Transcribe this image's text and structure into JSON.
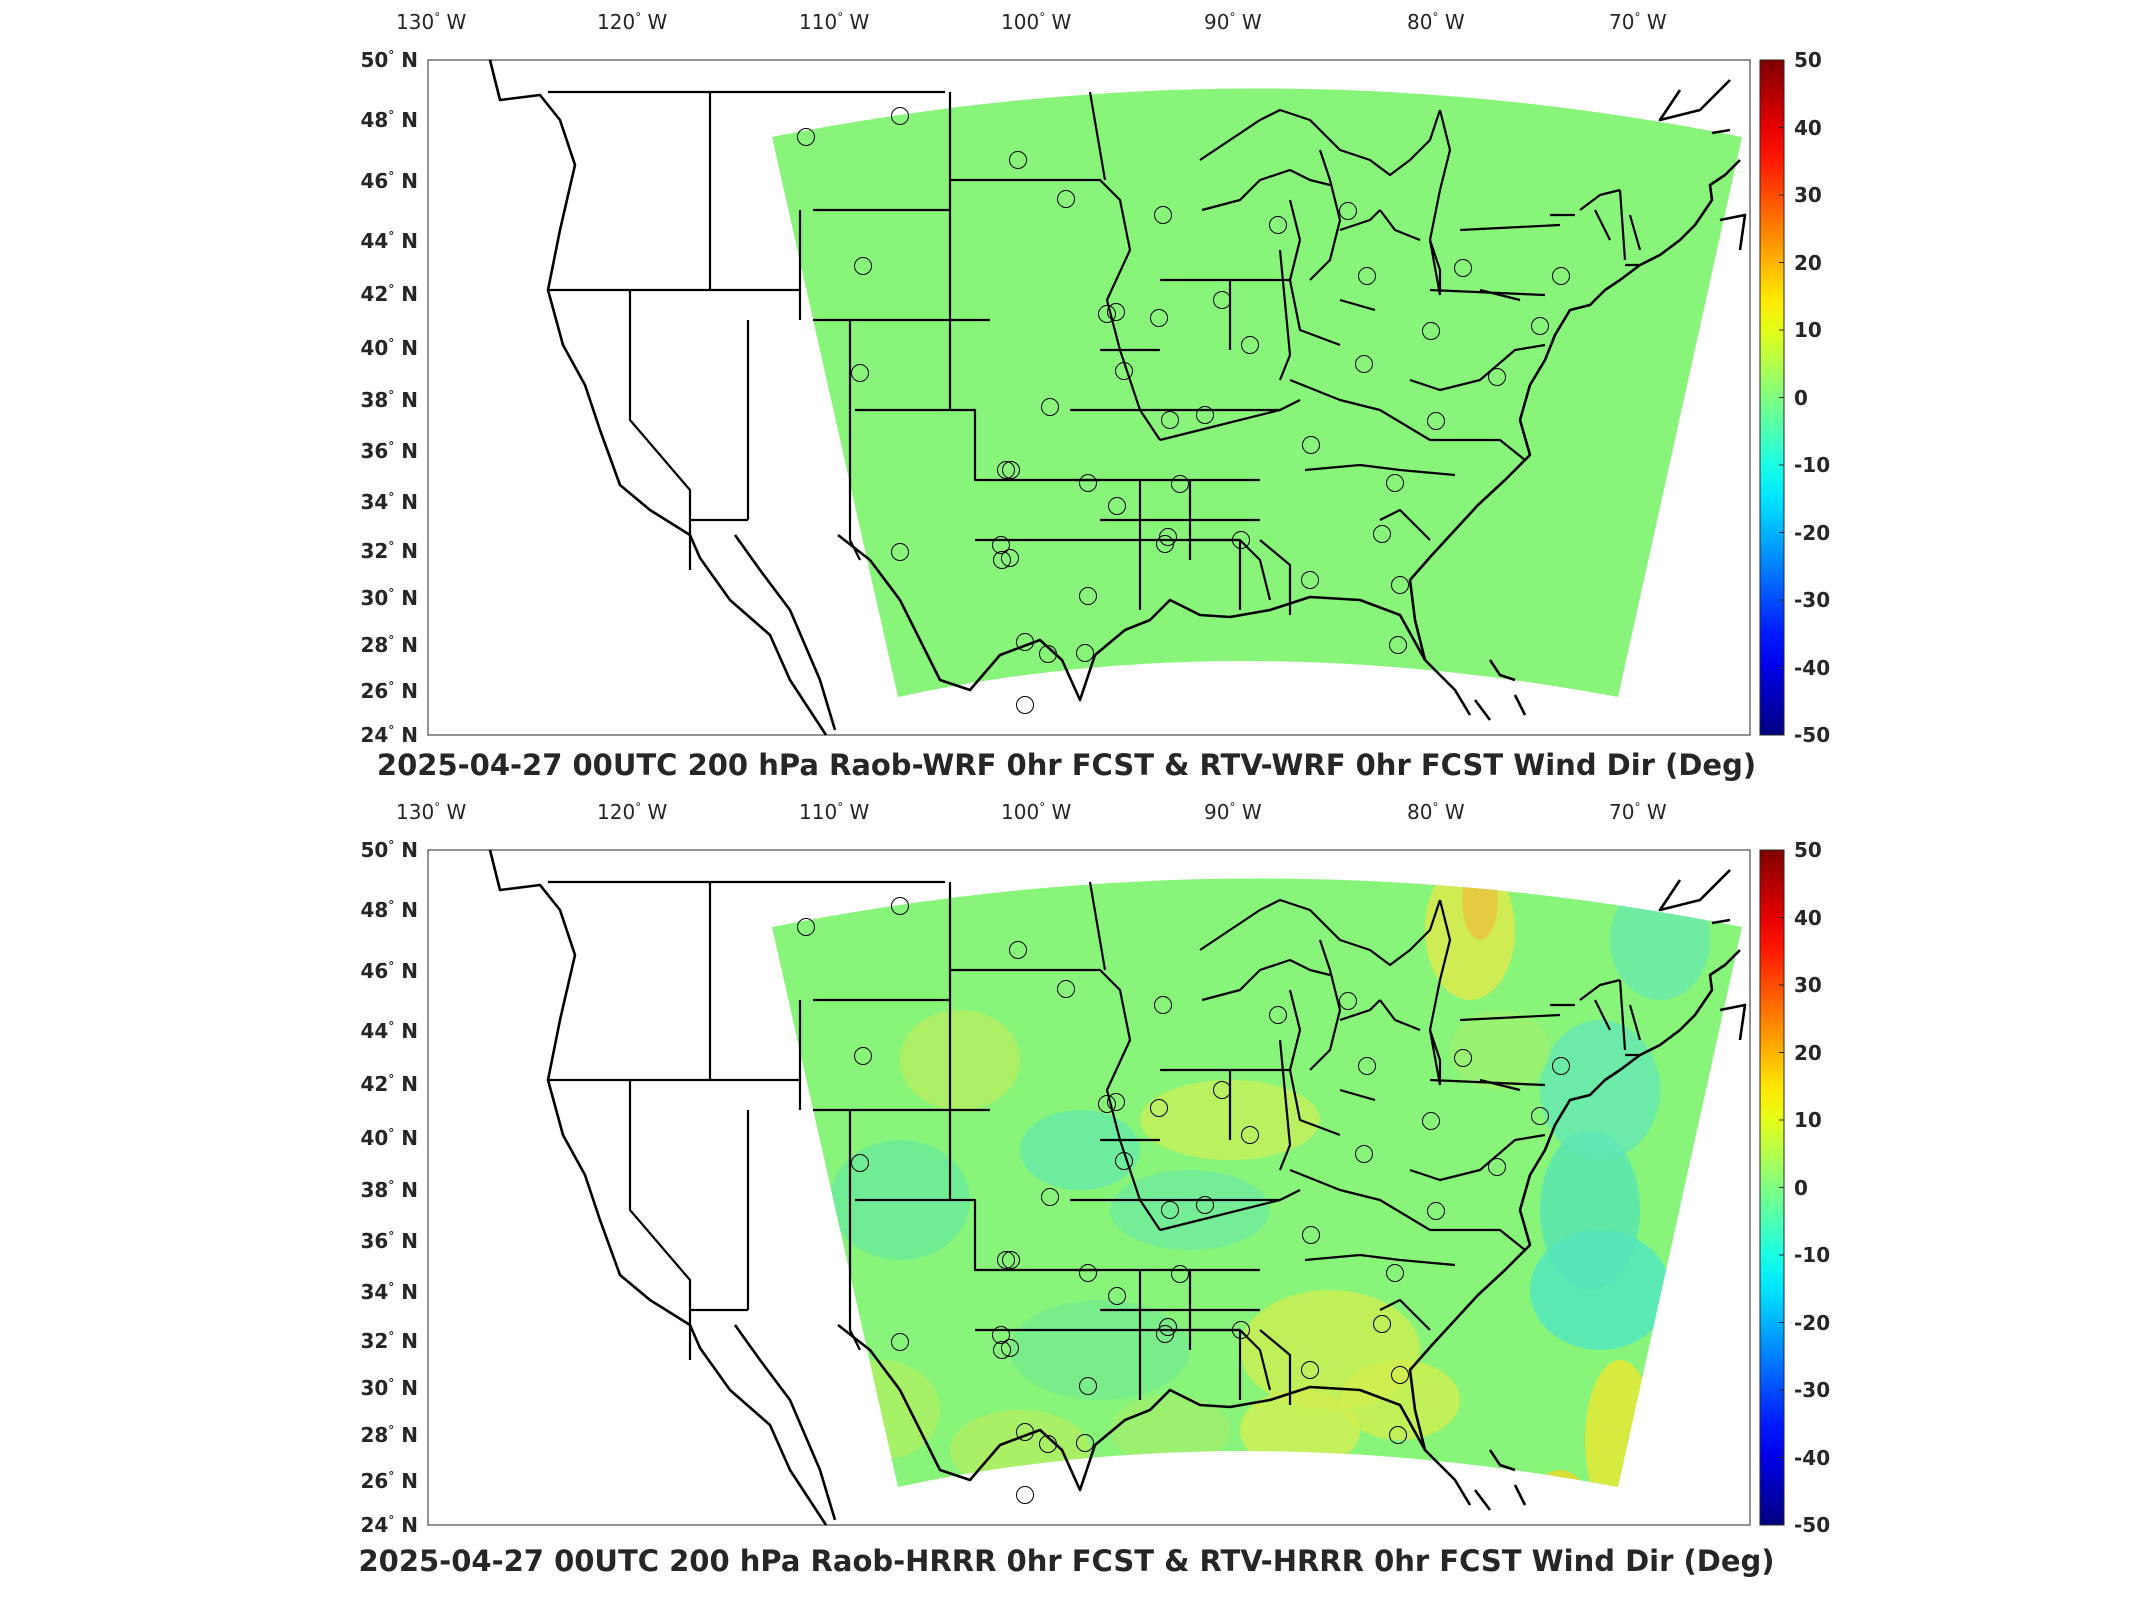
{
  "panels": [
    {
      "title": "2025-04-27 00UTC 200 hPa Raob-WRF 0hr FCST & RTV-WRF 0hr FCST Wind Dir (Deg)",
      "variant": "wrf"
    },
    {
      "title": "2025-04-27 00UTC 200 hPa Raob-HRRR 0hr FCST & RTV-HRRR 0hr FCST Wind Dir (Deg)",
      "variant": "hrrr"
    }
  ],
  "lon_labels": [
    "130",
    "120",
    "110",
    "100",
    "90",
    "80",
    "70"
  ],
  "lon_suffix": "W",
  "lat_labels": [
    "50",
    "48",
    "46",
    "44",
    "42",
    "40",
    "38",
    "36",
    "34",
    "32",
    "30",
    "28",
    "26",
    "24"
  ],
  "lat_suffix": "N",
  "colorbar": {
    "ticks": [
      "50",
      "40",
      "30",
      "20",
      "10",
      "0",
      "-10",
      "-20",
      "-30",
      "-40",
      "-50"
    ],
    "min": -50,
    "max": 50,
    "colormap": "jet"
  },
  "colors": {
    "field_base": "#88f57a",
    "border": "#000000"
  }
}
